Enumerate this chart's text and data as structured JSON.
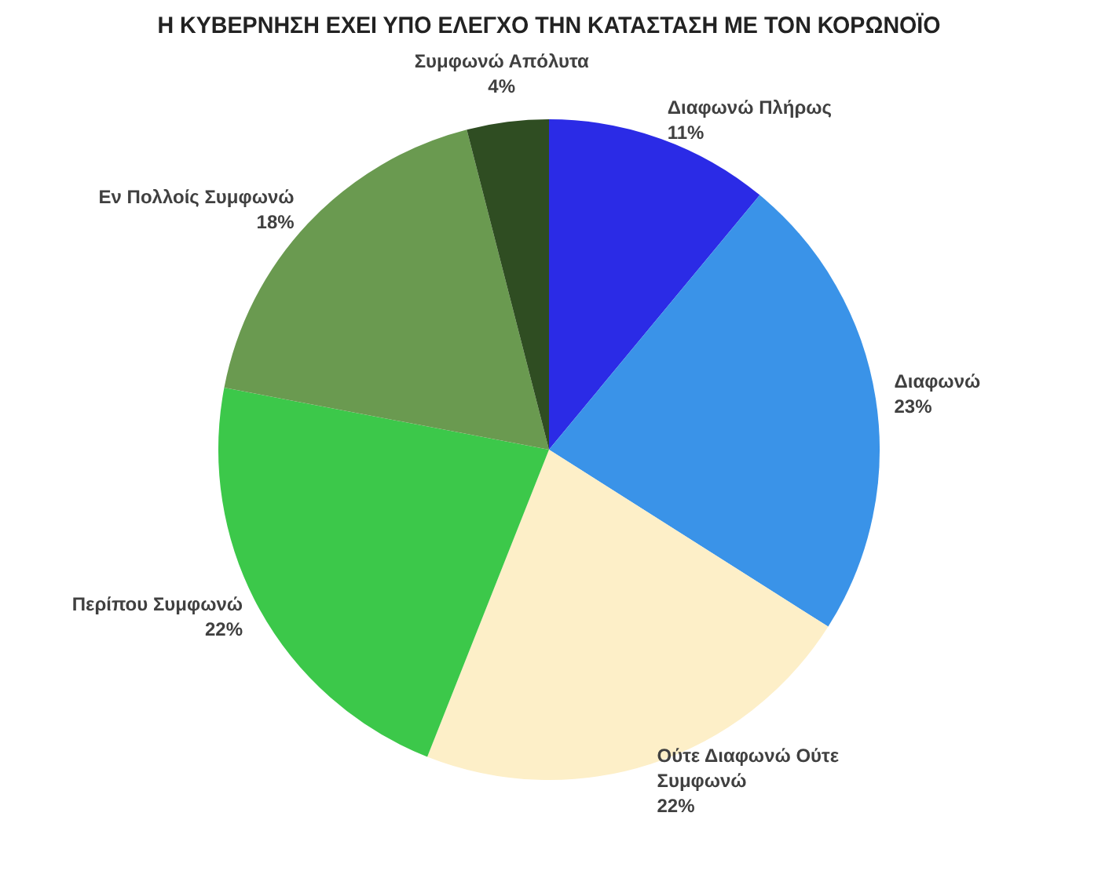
{
  "chart_data": {
    "type": "pie",
    "title": "Η ΚΥΒΕΡΝΗΣΗ ΕΧΕΙ ΥΠΟ ΕΛΕΓΧΟ ΤΗΝ ΚΑΤΑΣΤΑΣΗ ΜΕ ΤΟΝ ΚΟΡΩΝΟΪΟ",
    "categories": [
      "Διαφωνώ Πλήρως",
      "Διαφωνώ",
      "Ούτε Διαφωνώ Ούτε Συμφωνώ",
      "Περίπου Συμφωνώ",
      "Εν Πολλοίς Συμφωνώ",
      "Συμφωνώ Απόλυτα"
    ],
    "values": [
      11,
      23,
      22,
      22,
      18,
      4
    ],
    "value_labels": [
      "11%",
      "23%",
      "22%",
      "22%",
      "18%",
      "4%"
    ],
    "colors": [
      "#2b2be6",
      "#3a93e8",
      "#fdefc8",
      "#3cc84a",
      "#6a9a50",
      "#2f4d22"
    ],
    "legend": false
  }
}
